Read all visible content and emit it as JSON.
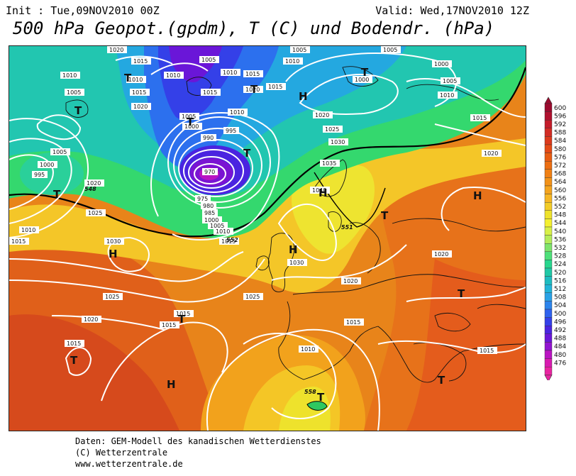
{
  "header": {
    "init": "Init : Tue,09NOV2010 00Z",
    "valid": "Valid: Wed,17NOV2010 12Z",
    "title": "500 hPa Geopot.(gpdm), T (C) und Bodendr. (hPa)"
  },
  "footer": {
    "line1": "Daten: GEM-Modell des kanadischen Wetterdienstes",
    "line2": "(C) Wetterzentrale",
    "line3": "www.wetterzentrale.de"
  },
  "legend": {
    "levels": [
      "600",
      "596",
      "592",
      "588",
      "584",
      "580",
      "576",
      "572",
      "568",
      "564",
      "560",
      "556",
      "552",
      "548",
      "544",
      "540",
      "536",
      "532",
      "528",
      "524",
      "520",
      "516",
      "512",
      "508",
      "504",
      "500",
      "496",
      "492",
      "488",
      "484",
      "480",
      "476"
    ],
    "colors": [
      "#9c0a2e",
      "#b0102e",
      "#c41c2a",
      "#d22c24",
      "#dc3a1c",
      "#e44a16",
      "#e85c12",
      "#ec6e12",
      "#f08014",
      "#f29218",
      "#f4a41e",
      "#f6b624",
      "#f2cc28",
      "#eee22c",
      "#f4f030",
      "#d8f048",
      "#b4ec5a",
      "#7ee46c",
      "#4ee07a",
      "#28d68e",
      "#20c8a6",
      "#1ebcc0",
      "#22b4d8",
      "#2aa2e6",
      "#2c84ec",
      "#2e62ee",
      "#3440e8",
      "#4a24e0",
      "#6a16d8",
      "#9214d0",
      "#ba14c2",
      "#d81ab0",
      "#e824a0"
    ]
  },
  "map": {
    "pressure_labels": [
      {
        "text": "1020"
      },
      {
        "text": "1015"
      },
      {
        "text": "1010"
      },
      {
        "text": "1005"
      },
      {
        "text": "1000"
      },
      {
        "text": "995"
      },
      {
        "text": "990"
      },
      {
        "text": "985"
      },
      {
        "text": "980"
      },
      {
        "text": "975"
      },
      {
        "text": "970"
      },
      {
        "text": "1025"
      },
      {
        "text": "1030"
      },
      {
        "text": "1035"
      },
      {
        "text": "1040"
      }
    ],
    "height_labels": [
      "548",
      "552",
      "551",
      "558"
    ],
    "centers": [
      {
        "text": "H"
      },
      {
        "text": "T"
      }
    ]
  }
}
